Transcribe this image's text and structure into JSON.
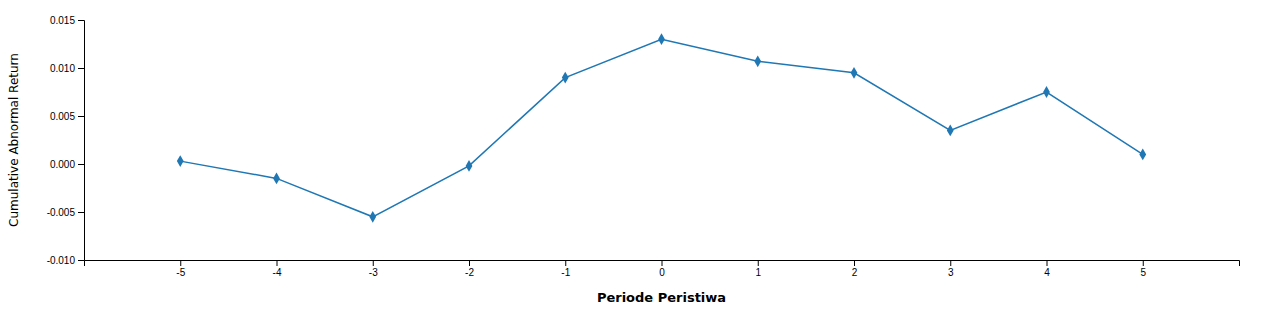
{
  "chart_data": {
    "type": "line",
    "x": [
      -5,
      -4,
      -3,
      -2,
      -1,
      0,
      1,
      2,
      3,
      4,
      5
    ],
    "values": [
      0.0003,
      -0.0015,
      -0.0055,
      -0.0002,
      0.009,
      0.013,
      0.0107,
      0.0095,
      0.0035,
      0.0075,
      0.001
    ],
    "x_label": "Periode Peristiwa",
    "y_label": "Cumulative Abnormal Return",
    "xlim": [
      -6,
      6
    ],
    "xticks": [
      -5,
      -4,
      -3,
      -2,
      -1,
      0,
      1,
      2,
      3,
      4,
      5
    ],
    "ylim": [
      -0.01,
      0.015
    ],
    "yticks": [
      {
        "value": -0.01,
        "label": "-0.010"
      },
      -0.005,
      {
        "value": 0,
        "label": "0.000"
      },
      0.005,
      {
        "value": 0.01,
        "label": "0.010"
      },
      0.015
    ],
    "marker": "diamond",
    "grid": false
  }
}
